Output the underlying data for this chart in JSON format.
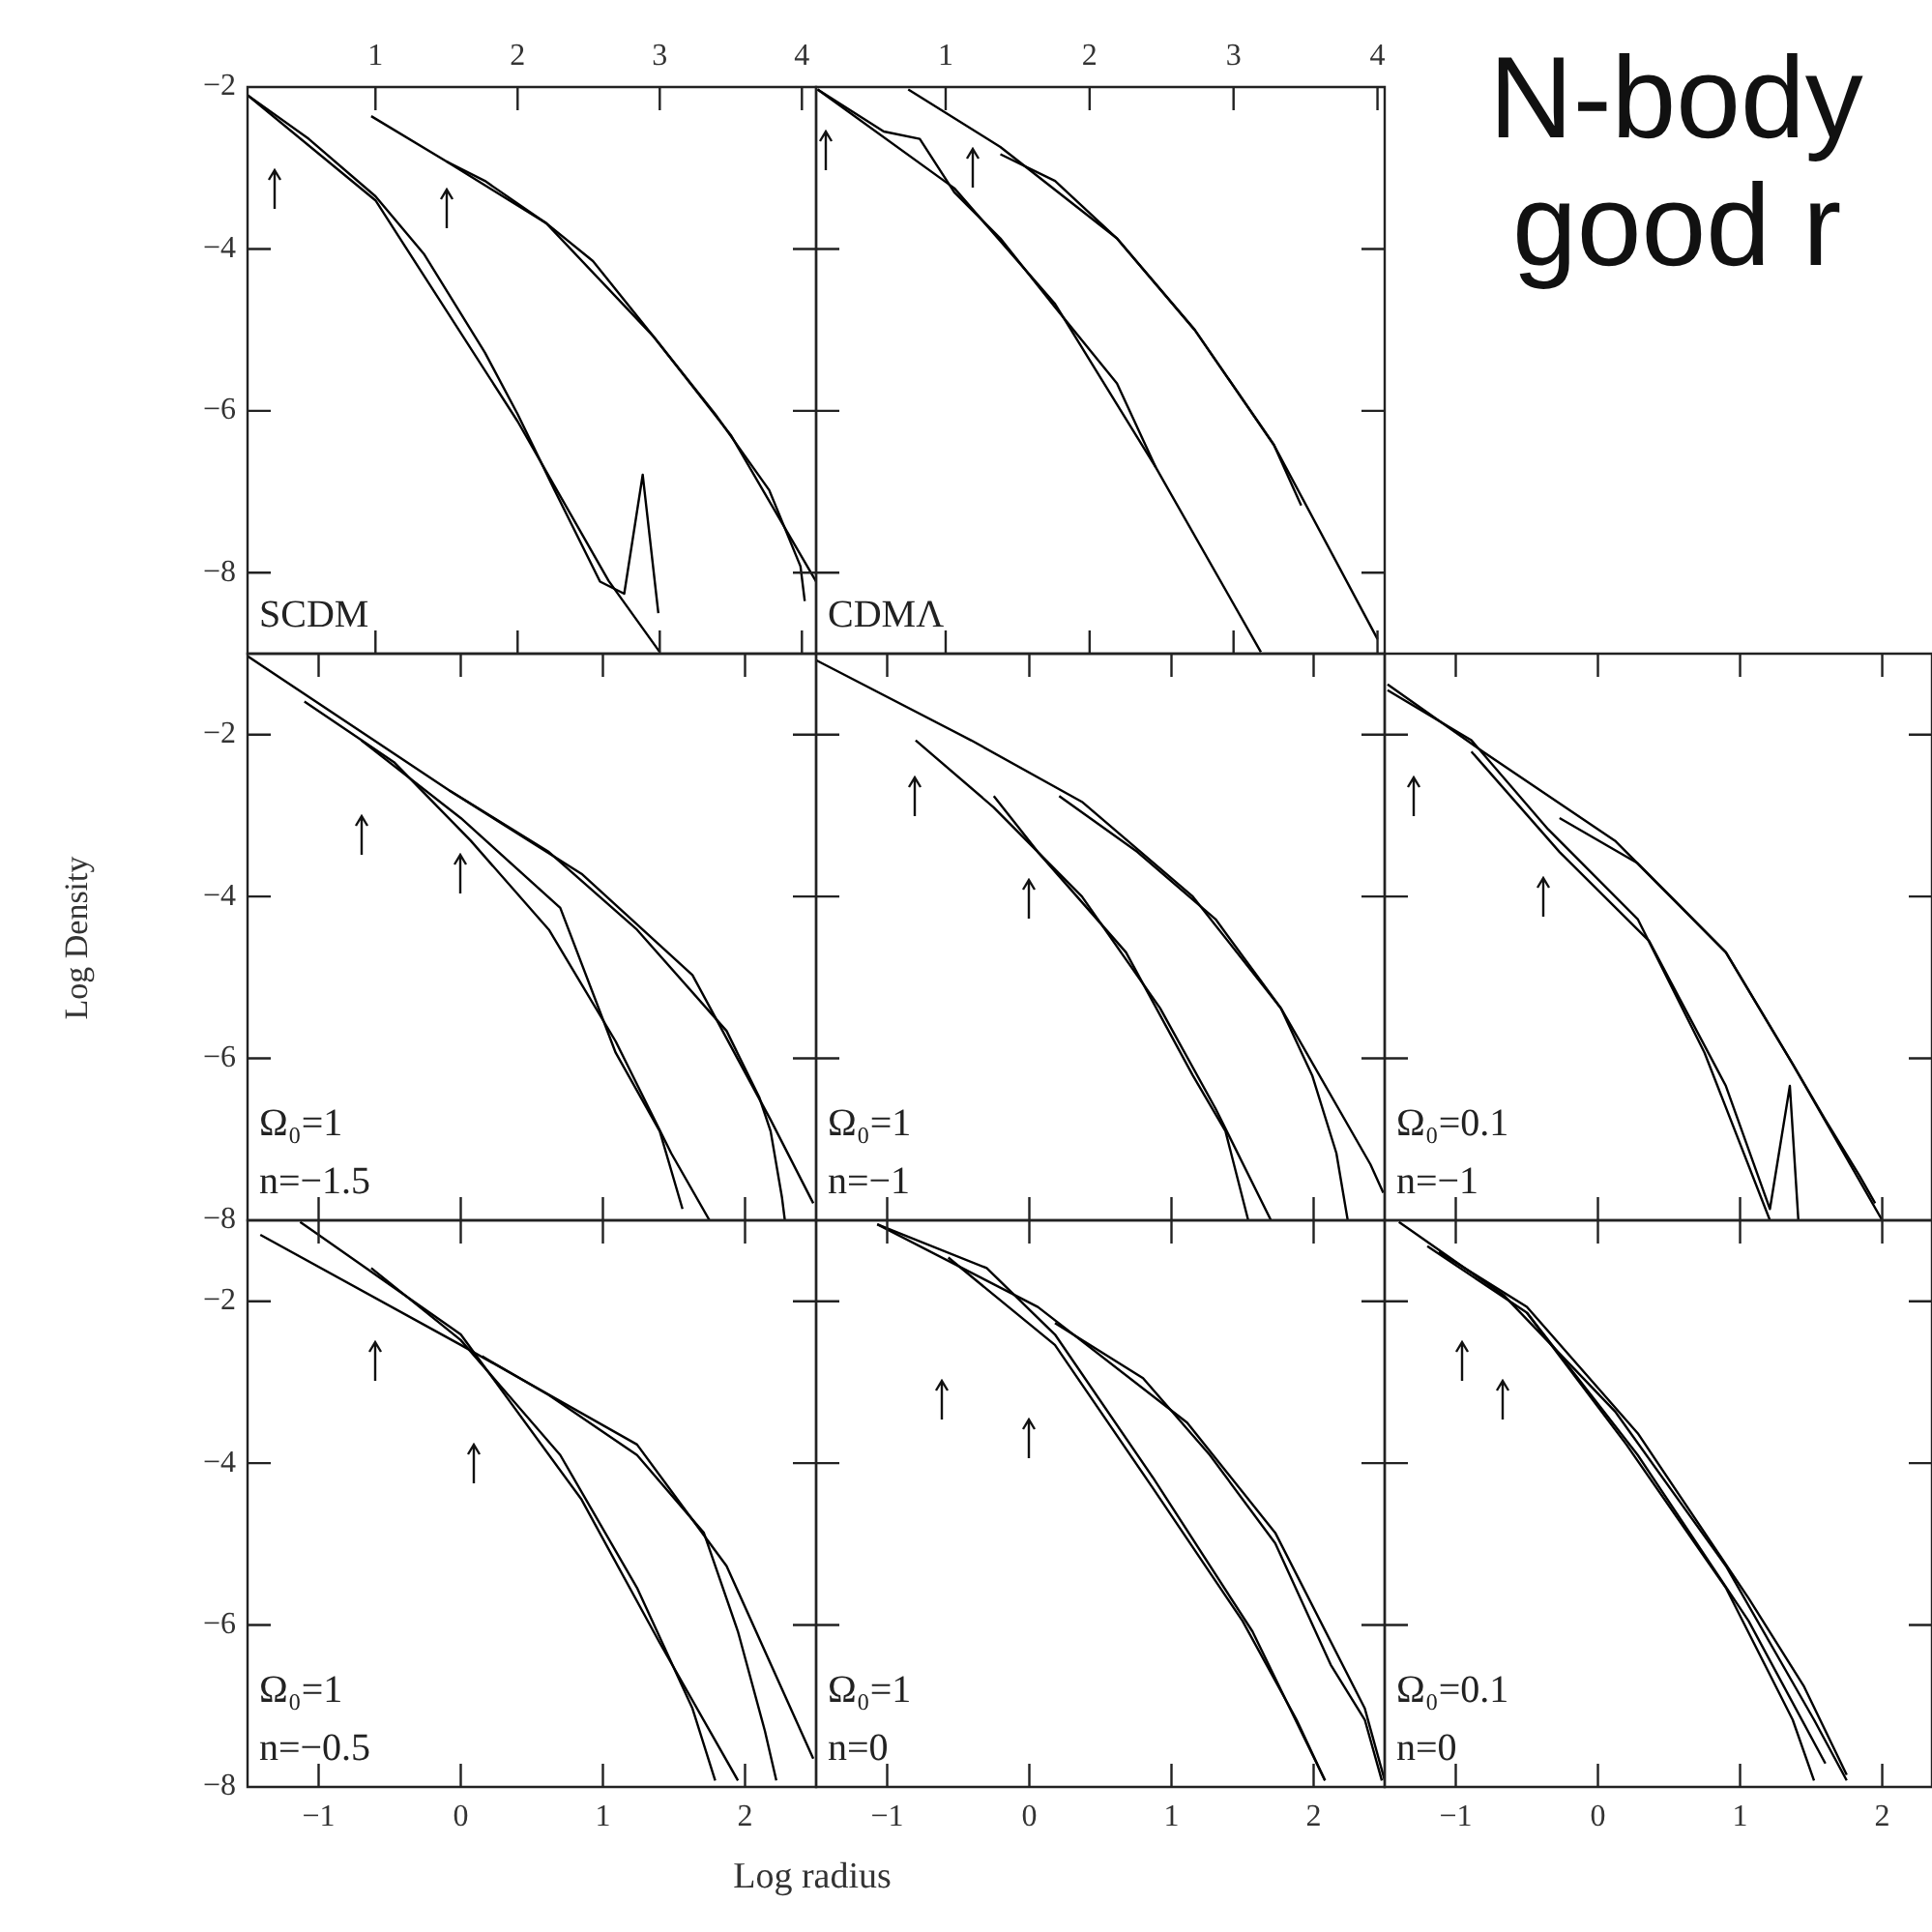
{
  "chart_data": [
    {
      "type": "line",
      "xlim": [
        0.1,
        4.1
      ],
      "xticks": [
        1,
        2,
        3,
        4
      ],
      "ylim": [
        -9,
        -2
      ],
      "yticks": [
        {
          "value": -8,
          "label": "−8"
        },
        {
          "value": -6,
          "label": "−6"
        },
        {
          "value": -4,
          "label": "−4"
        },
        {
          "value": -2,
          "label": "−2"
        }
      ],
      "annotations": [
        "SCDM"
      ],
      "series": [
        {
          "color": "#000000",
          "x": [
            0.1,
            0.53,
            1.0,
            1.34,
            1.77,
            2.0,
            2.26,
            2.58,
            2.75,
            2.88,
            2.99
          ],
          "values": [
            -2.1,
            -2.64,
            -3.35,
            -4.06,
            -5.28,
            -6.04,
            -6.98,
            -8.11,
            -8.26,
            -6.79,
            -8.5
          ]
        },
        {
          "color": "#000000",
          "x": [
            0.1,
            1.0,
            2.0,
            2.64,
            3.0
          ],
          "values": [
            -2.1,
            -3.4,
            -6.13,
            -8.1,
            -8.98
          ]
        },
        {
          "color": "#000000",
          "x": [
            1.5,
            1.77,
            2.2,
            2.53,
            2.96,
            3.39,
            3.77,
            3.99,
            4.02
          ],
          "values": [
            -2.92,
            -3.16,
            -3.68,
            -4.15,
            -5.09,
            -6.04,
            -6.98,
            -7.92,
            -8.35
          ]
        },
        {
          "color": "#000000",
          "x": [
            0.97,
            1.5,
            2.2,
            2.96,
            3.5,
            4.1
          ],
          "values": [
            -2.36,
            -2.92,
            -3.68,
            -5.09,
            -6.3,
            -8.11
          ]
        }
      ]
    },
    {
      "type": "line",
      "xlim": [
        0.1,
        4.05
      ],
      "xticks": [
        1,
        2,
        3,
        4
      ],
      "ylim": [
        -9,
        -2
      ],
      "yticks": [
        {
          "value": -8,
          "label": null
        },
        {
          "value": -6,
          "label": null
        },
        {
          "value": -4,
          "label": null
        },
        {
          "value": -2,
          "label": null
        }
      ],
      "tick_labels": "x",
      "annotations": [
        "CDMΛ"
      ],
      "series": [
        {
          "color": "#000000",
          "x": [
            0.11,
            0.57,
            0.82,
            1.06,
            1.38,
            1.76,
            2.19,
            2.46
          ],
          "values": [
            -2.03,
            -2.55,
            -2.64,
            -3.3,
            -3.87,
            -4.72,
            -5.66,
            -6.7
          ]
        },
        {
          "color": "#000000",
          "x": [
            0.11,
            1.06,
            1.76,
            2.46,
            3.19
          ],
          "values": [
            -2.03,
            -3.25,
            -4.68,
            -6.7,
            -8.98
          ]
        },
        {
          "color": "#000000",
          "x": [
            1.38,
            1.76,
            2.19,
            2.73,
            3.28,
            3.47
          ],
          "values": [
            -2.83,
            -3.16,
            -3.87,
            -5.0,
            -6.42,
            -7.17
          ]
        },
        {
          "color": "#000000",
          "x": [
            0.74,
            1.38,
            2.19,
            2.73,
            3.28,
            4.0
          ],
          "values": [
            -2.03,
            -2.74,
            -3.87,
            -5.0,
            -6.42,
            -8.82
          ]
        }
      ]
    },
    {
      "type": "line",
      "xlim": [
        -1.5,
        2.5
      ],
      "xticks": [
        {
          "value": -1,
          "label": null
        },
        {
          "value": 0,
          "label": null
        },
        {
          "value": 1,
          "label": null
        },
        {
          "value": 2,
          "label": null
        }
      ],
      "ylim": [
        -8,
        -1
      ],
      "yticks": [
        {
          "value": -8,
          "label": "−8"
        },
        {
          "value": -6,
          "label": "−6"
        },
        {
          "value": -4,
          "label": "−4"
        },
        {
          "value": -2,
          "label": "−2"
        }
      ],
      "tick_labels": "y",
      "ylabel": "Log Density",
      "annotations": [
        "Ω₀=1",
        "n=−1.5"
      ],
      "series": [
        {
          "color": "#000000",
          "x": [
            -1.5,
            -0.08,
            0.85,
            1.63,
            2.18,
            2.48
          ],
          "values": [
            -1.03,
            -2.69,
            -3.72,
            -4.97,
            -6.76,
            -7.79
          ]
        },
        {
          "color": "#000000",
          "x": [
            -0.08,
            0.62,
            1.24,
            1.87,
            2.1,
            2.18,
            2.26,
            2.28
          ],
          "values": [
            -2.69,
            -3.45,
            -4.41,
            -5.66,
            -6.48,
            -6.9,
            -7.72,
            -8.0
          ]
        },
        {
          "color": "#000000",
          "x": [
            -1.1,
            -0.47,
            0.07,
            0.62,
            1.09,
            1.48,
            1.75
          ],
          "values": [
            -1.59,
            -2.34,
            -3.31,
            -4.41,
            -5.79,
            -7.17,
            -8.0
          ]
        },
        {
          "color": "#000000",
          "x": [
            -0.7,
            0.0,
            0.7,
            1.09,
            1.4,
            1.56
          ],
          "values": [
            -2.07,
            -3.03,
            -4.14,
            -5.93,
            -6.9,
            -7.86
          ]
        }
      ]
    },
    {
      "type": "line",
      "xlim": [
        -1.5,
        2.5
      ],
      "xticks": [
        {
          "value": -1,
          "label": null
        },
        {
          "value": 0,
          "label": null
        },
        {
          "value": 1,
          "label": null
        },
        {
          "value": 2,
          "label": null
        }
      ],
      "ylim": [
        -8,
        -1
      ],
      "yticks": [
        {
          "value": -8,
          "label": null
        },
        {
          "value": -6,
          "label": null
        },
        {
          "value": -4,
          "label": null
        },
        {
          "value": -2,
          "label": null
        }
      ],
      "tick_labels": false,
      "annotations": [
        "Ω₀=1",
        "n=−1"
      ],
      "series": [
        {
          "color": "#000000",
          "x": [
            -1.5,
            -0.41,
            0.37,
            1.15,
            1.77,
            2.4,
            2.49
          ],
          "values": [
            -1.08,
            -2.07,
            -2.83,
            -4.0,
            -5.38,
            -7.31,
            -7.66
          ]
        },
        {
          "color": "#000000",
          "x": [
            0.21,
            0.76,
            1.31,
            1.77,
            1.99,
            2.16,
            2.24
          ],
          "values": [
            -2.76,
            -3.45,
            -4.28,
            -5.38,
            -6.21,
            -7.17,
            -8.0
          ]
        },
        {
          "color": "#000000",
          "x": [
            -0.8,
            -0.25,
            0.37,
            0.92,
            1.31,
            1.7
          ],
          "values": [
            -2.07,
            -2.9,
            -4.0,
            -5.38,
            -6.62,
            -8.0
          ]
        },
        {
          "color": "#000000",
          "x": [
            -0.25,
            0.06,
            0.68,
            1.15,
            1.38,
            1.54
          ],
          "values": [
            -2.76,
            -3.45,
            -4.69,
            -6.21,
            -6.9,
            -8.0
          ]
        }
      ]
    },
    {
      "type": "line",
      "xlim": [
        -1.5,
        2.35
      ],
      "xticks": [
        {
          "value": -1,
          "label": null
        },
        {
          "value": 0,
          "label": null
        },
        {
          "value": 1,
          "label": null
        },
        {
          "value": 2,
          "label": null
        }
      ],
      "ylim": [
        -8,
        -1
      ],
      "yticks": [
        {
          "value": -8,
          "label": null
        },
        {
          "value": -6,
          "label": null
        },
        {
          "value": -4,
          "label": null
        },
        {
          "value": -2,
          "label": null
        }
      ],
      "tick_labels": false,
      "annotations": [
        "Ω₀=0.1",
        "n=−1"
      ],
      "series": [
        {
          "color": "#000000",
          "x": [
            -1.48,
            -0.81,
            0.12,
            0.9,
            1.37,
            2.0
          ],
          "values": [
            -1.38,
            -2.21,
            -3.31,
            -4.69,
            -6.07,
            -8.0
          ]
        },
        {
          "color": "#000000",
          "x": [
            -0.27,
            0.28,
            0.9,
            1.37,
            1.6,
            1.84,
            1.95
          ],
          "values": [
            -3.03,
            -3.59,
            -4.69,
            -6.07,
            -6.76,
            -7.45,
            -7.79
          ]
        },
        {
          "color": "#000000",
          "x": [
            -1.48,
            -0.89,
            -0.35,
            0.28,
            0.75,
            1.21
          ],
          "values": [
            -1.45,
            -2.07,
            -3.17,
            -4.28,
            -5.93,
            -8.0
          ]
        },
        {
          "color": "#000000",
          "x": [
            -0.89,
            -0.27,
            0.36,
            0.9,
            1.21,
            1.35,
            1.41
          ],
          "values": [
            -2.21,
            -3.45,
            -4.55,
            -6.34,
            -7.86,
            -6.34,
            -8.0
          ]
        }
      ]
    },
    {
      "type": "line",
      "xlim": [
        -1.5,
        2.5
      ],
      "xticks": [
        {
          "value": -1,
          "label": "−1"
        },
        0,
        1,
        2
      ],
      "ylim": [
        -8,
        -1
      ],
      "yticks": [
        {
          "value": -8,
          "label": "−8"
        },
        {
          "value": -6,
          "label": "−6"
        },
        {
          "value": -4,
          "label": "−4"
        },
        {
          "value": -2,
          "label": "−2"
        }
      ],
      "annotations": [
        "Ω₀=1",
        "n=−0.5"
      ],
      "series": [
        {
          "color": "#000000",
          "x": [
            -1.41,
            0.0,
            1.24,
            1.87,
            2.48
          ],
          "values": [
            -1.18,
            -2.54,
            -3.77,
            -5.27,
            -7.65
          ]
        },
        {
          "color": "#000000",
          "x": [
            -1.13,
            0.0,
            0.85,
            1.4,
            1.95
          ],
          "values": [
            -1.02,
            -2.41,
            -4.45,
            -6.22,
            -7.92
          ]
        },
        {
          "color": "#000000",
          "x": [
            0.15,
            0.62,
            1.24,
            1.71,
            1.95,
            2.14,
            2.22
          ],
          "values": [
            -2.68,
            -3.16,
            -3.9,
            -4.86,
            -6.08,
            -7.31,
            -7.92
          ]
        },
        {
          "color": "#000000",
          "x": [
            -0.63,
            0.0,
            0.7,
            1.24,
            1.63,
            1.79
          ],
          "values": [
            -1.59,
            -2.48,
            -3.9,
            -5.54,
            -7.03,
            -7.92
          ]
        }
      ]
    },
    {
      "type": "line",
      "xlim": [
        -1.5,
        2.5
      ],
      "xticks": [
        {
          "value": -1,
          "label": "−1"
        },
        0,
        1,
        2
      ],
      "ylim": [
        -8,
        -1
      ],
      "yticks": [
        {
          "value": -8,
          "label": null
        },
        {
          "value": -6,
          "label": null
        },
        {
          "value": -4,
          "label": null
        },
        {
          "value": -2,
          "label": null
        }
      ],
      "tick_labels": "x",
      "xlabel": "Log radius",
      "annotations": [
        "Ω₀=1",
        "n=0"
      ],
      "series": [
        {
          "color": "#000000",
          "x": [
            -1.07,
            0.06,
            1.11,
            1.73,
            2.36,
            2.5
          ],
          "values": [
            -1.05,
            -2.07,
            -3.5,
            -4.86,
            -7.03,
            -7.92
          ]
        },
        {
          "color": "#000000",
          "x": [
            -1.07,
            -0.3,
            0.18,
            0.87,
            1.57,
            2.08
          ],
          "values": [
            -1.05,
            -1.59,
            -2.41,
            -4.18,
            -6.08,
            -7.92
          ]
        },
        {
          "color": "#000000",
          "x": [
            0.18,
            0.8,
            1.27,
            1.73,
            2.12,
            2.36,
            2.48
          ],
          "values": [
            -2.27,
            -2.95,
            -3.9,
            -4.99,
            -6.49,
            -7.17,
            -7.92
          ]
        },
        {
          "color": "#000000",
          "x": [
            -0.57,
            0.18,
            0.87,
            1.5,
            1.88,
            2.08
          ],
          "values": [
            -1.46,
            -2.54,
            -4.31,
            -5.95,
            -7.17,
            -7.92
          ]
        }
      ]
    },
    {
      "type": "line",
      "xlim": [
        -1.5,
        2.35
      ],
      "xticks": [
        {
          "value": -1,
          "label": "−1"
        },
        0,
        1,
        2
      ],
      "ylim": [
        -8,
        -1
      ],
      "yticks": [
        {
          "value": -8,
          "label": null
        },
        {
          "value": -6,
          "label": null
        },
        {
          "value": -4,
          "label": null
        },
        {
          "value": -2,
          "label": null
        }
      ],
      "tick_labels": "x",
      "annotations": [
        "Ω₀=0.1",
        "n=0"
      ],
      "series": [
        {
          "color": "#000000",
          "x": [
            -1.4,
            -0.66,
            0.12,
            0.9,
            1.52,
            1.75
          ],
          "values": [
            -1.02,
            -1.93,
            -3.36,
            -5.27,
            -7.17,
            -7.92
          ]
        },
        {
          "color": "#000000",
          "x": [
            -1.2,
            -0.5,
            0.28,
            1.06,
            1.6
          ],
          "values": [
            -1.32,
            -2.14,
            -3.9,
            -5.95,
            -7.71
          ]
        },
        {
          "color": "#000000",
          "x": [
            -1.12,
            -0.5,
            0.28,
            1.06,
            1.45,
            1.75
          ],
          "values": [
            -1.39,
            -2.07,
            -3.63,
            -5.67,
            -6.76,
            -7.85
          ]
        },
        {
          "color": "#000000",
          "x": [
            -0.5,
            0.2,
            0.9,
            1.37,
            1.52
          ],
          "values": [
            -2.14,
            -3.77,
            -5.54,
            -7.17,
            -7.92
          ]
        }
      ]
    },
    {
      "type": "other",
      "title": "N-body",
      "subtitle": "good r"
    }
  ]
}
